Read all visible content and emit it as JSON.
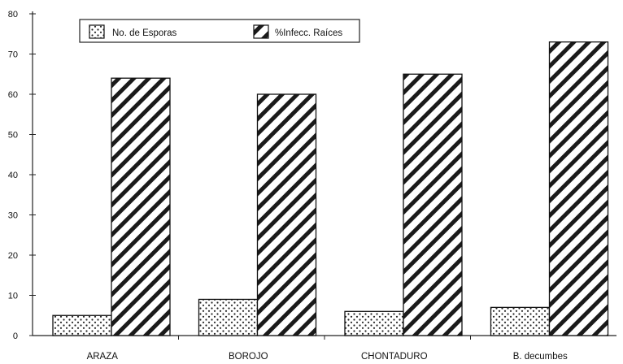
{
  "chart_data": {
    "type": "bar",
    "title": "",
    "xlabel": "",
    "ylabel": "",
    "categories": [
      "ARAZA",
      "BOROJO",
      "CHONTADURO",
      "B. decumbes"
    ],
    "series": [
      {
        "name": "No. de Esporas",
        "values": [
          5,
          9,
          6,
          7
        ],
        "pattern": "dots"
      },
      {
        "name": "%Infecc. Raíces",
        "values": [
          64,
          60,
          65,
          73
        ],
        "pattern": "hatch"
      }
    ],
    "ylim": [
      0,
      80
    ],
    "yticks": [
      0,
      10,
      20,
      30,
      40,
      50,
      60,
      70,
      80
    ],
    "grid": false,
    "legend_position": "top"
  },
  "colors": {
    "axis": "#222222",
    "bar_outline": "#111111",
    "fill": "#ffffff"
  }
}
